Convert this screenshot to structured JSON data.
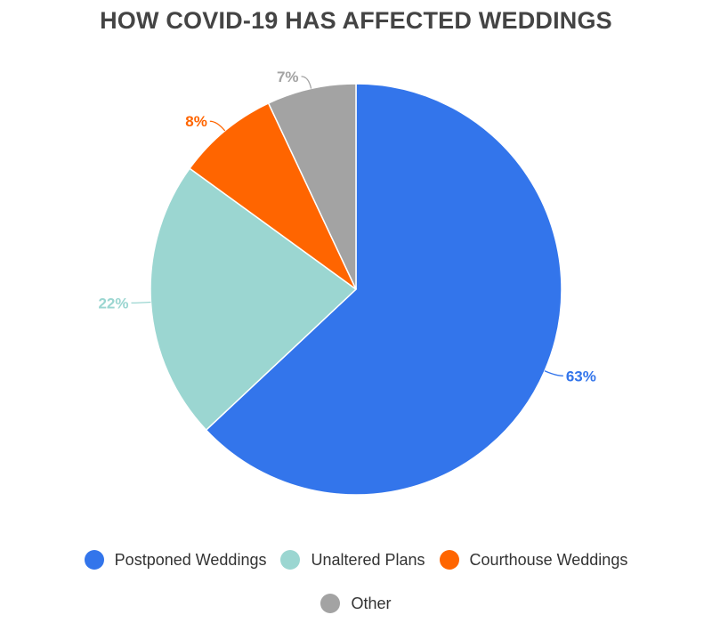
{
  "chart_data": {
    "type": "pie",
    "title": "HOW COVID-19 HAS AFFECTED WEDDINGS",
    "start_angle_deg": 0,
    "direction": "clockwise",
    "slices": [
      {
        "name": "Postponed Weddings",
        "value": 63,
        "label": "63%",
        "color": "#3375EB"
      },
      {
        "name": "Unaltered Plans",
        "value": 22,
        "label": "22%",
        "color": "#9BD6D1"
      },
      {
        "name": "Courthouse Weddings",
        "value": 8,
        "label": "8%",
        "color": "#FF6500"
      },
      {
        "name": "Other",
        "value": 7,
        "label": "7%",
        "color": "#A3A3A3"
      }
    ],
    "legend_position": "bottom"
  }
}
